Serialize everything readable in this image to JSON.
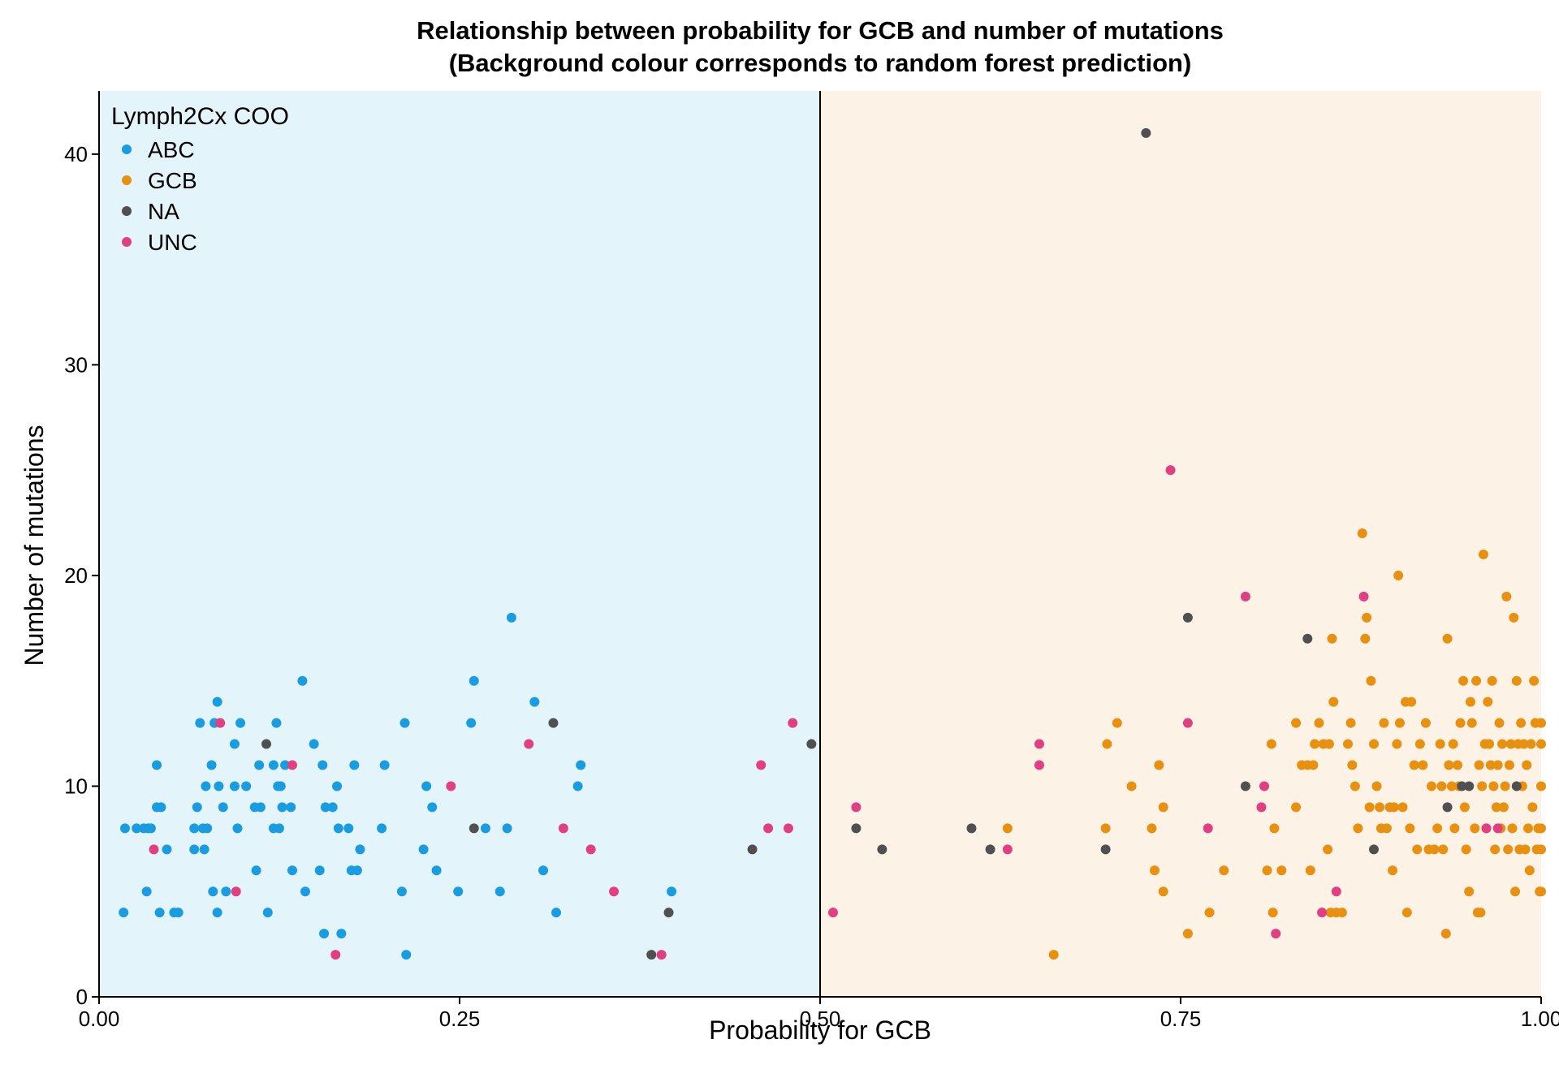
{
  "chart_data": {
    "type": "scatter",
    "title": "Relationship between probability for GCB and number of mutations",
    "subtitle": "(Background colour corresponds to random forest prediction)",
    "xlabel": "Probability for GCB",
    "ylabel": "Number of mutations",
    "xlim": [
      0,
      1
    ],
    "ylim": [
      0,
      43
    ],
    "x_ticks": [
      0,
      0.25,
      0.5,
      0.75,
      1.0
    ],
    "x_tick_labels": [
      "0.00",
      "0.25",
      "0.50",
      "0.75",
      "1.00"
    ],
    "y_ticks": [
      0,
      10,
      20,
      30,
      40
    ],
    "y_tick_labels": [
      "0",
      "10",
      "20",
      "30",
      "40"
    ],
    "grid": false,
    "threshold_x": 0.5,
    "regions": [
      {
        "x_from": 0,
        "x_to": 0.5,
        "color": "#e3f4fb"
      },
      {
        "x_from": 0.5,
        "x_to": 1.0,
        "color": "#fdf2e6"
      }
    ],
    "legend": {
      "title": "Lymph2Cx COO",
      "position": "top-left",
      "entries": [
        "ABC",
        "GCB",
        "NA",
        "UNC"
      ]
    },
    "colors": {
      "ABC": "#1a9de0",
      "GCB": "#e8900f",
      "NA": "#505050",
      "UNC": "#e23f82"
    },
    "series": [
      {
        "name": "ABC",
        "points": [
          [
            0.017,
            4
          ],
          [
            0.018,
            8
          ],
          [
            0.026,
            8
          ],
          [
            0.031,
            8
          ],
          [
            0.033,
            5
          ],
          [
            0.034,
            8
          ],
          [
            0.036,
            8
          ],
          [
            0.04,
            11
          ],
          [
            0.04,
            9
          ],
          [
            0.042,
            4
          ],
          [
            0.043,
            9
          ],
          [
            0.047,
            7
          ],
          [
            0.052,
            4
          ],
          [
            0.055,
            4
          ],
          [
            0.066,
            8
          ],
          [
            0.066,
            7
          ],
          [
            0.068,
            9
          ],
          [
            0.07,
            13
          ],
          [
            0.072,
            8
          ],
          [
            0.073,
            7
          ],
          [
            0.074,
            10
          ],
          [
            0.075,
            8
          ],
          [
            0.078,
            11
          ],
          [
            0.079,
            5
          ],
          [
            0.08,
            13
          ],
          [
            0.082,
            14
          ],
          [
            0.082,
            4
          ],
          [
            0.083,
            10
          ],
          [
            0.086,
            9
          ],
          [
            0.088,
            5
          ],
          [
            0.094,
            12
          ],
          [
            0.094,
            10
          ],
          [
            0.096,
            8
          ],
          [
            0.098,
            13
          ],
          [
            0.102,
            10
          ],
          [
            0.108,
            9
          ],
          [
            0.109,
            6
          ],
          [
            0.111,
            11
          ],
          [
            0.112,
            9
          ],
          [
            0.117,
            4
          ],
          [
            0.121,
            11
          ],
          [
            0.121,
            8
          ],
          [
            0.123,
            13
          ],
          [
            0.124,
            10
          ],
          [
            0.125,
            8
          ],
          [
            0.126,
            10
          ],
          [
            0.127,
            9
          ],
          [
            0.129,
            11
          ],
          [
            0.133,
            9
          ],
          [
            0.134,
            6
          ],
          [
            0.141,
            15
          ],
          [
            0.143,
            5
          ],
          [
            0.149,
            12
          ],
          [
            0.153,
            6
          ],
          [
            0.155,
            11
          ],
          [
            0.156,
            3
          ],
          [
            0.157,
            9
          ],
          [
            0.162,
            9
          ],
          [
            0.165,
            10
          ],
          [
            0.166,
            8
          ],
          [
            0.168,
            3
          ],
          [
            0.173,
            8
          ],
          [
            0.175,
            6
          ],
          [
            0.177,
            11
          ],
          [
            0.179,
            6
          ],
          [
            0.181,
            7
          ],
          [
            0.196,
            8
          ],
          [
            0.198,
            11
          ],
          [
            0.21,
            5
          ],
          [
            0.212,
            13
          ],
          [
            0.213,
            2
          ],
          [
            0.225,
            7
          ],
          [
            0.227,
            10
          ],
          [
            0.231,
            9
          ],
          [
            0.234,
            6
          ],
          [
            0.249,
            5
          ],
          [
            0.258,
            13
          ],
          [
            0.26,
            15
          ],
          [
            0.268,
            8
          ],
          [
            0.278,
            5
          ],
          [
            0.283,
            8
          ],
          [
            0.286,
            18
          ],
          [
            0.302,
            14
          ],
          [
            0.308,
            6
          ],
          [
            0.317,
            4
          ],
          [
            0.332,
            10
          ],
          [
            0.334,
            11
          ],
          [
            0.397,
            5
          ]
        ]
      },
      {
        "name": "GCB",
        "points": [
          [
            0.63,
            8
          ],
          [
            0.662,
            2
          ],
          [
            0.698,
            8
          ],
          [
            0.699,
            12
          ],
          [
            0.706,
            13
          ],
          [
            0.716,
            10
          ],
          [
            0.73,
            8
          ],
          [
            0.732,
            6
          ],
          [
            0.735,
            11
          ],
          [
            0.738,
            9
          ],
          [
            0.738,
            5
          ],
          [
            0.755,
            3
          ],
          [
            0.77,
            4
          ],
          [
            0.78,
            6
          ],
          [
            0.81,
            6
          ],
          [
            0.813,
            12
          ],
          [
            0.814,
            4
          ],
          [
            0.815,
            8
          ],
          [
            0.82,
            6
          ],
          [
            0.83,
            13
          ],
          [
            0.83,
            9
          ],
          [
            0.834,
            11
          ],
          [
            0.838,
            11
          ],
          [
            0.84,
            6
          ],
          [
            0.842,
            11
          ],
          [
            0.843,
            12
          ],
          [
            0.846,
            13
          ],
          [
            0.849,
            12
          ],
          [
            0.852,
            7
          ],
          [
            0.853,
            12
          ],
          [
            0.854,
            4
          ],
          [
            0.855,
            17
          ],
          [
            0.856,
            14
          ],
          [
            0.858,
            4
          ],
          [
            0.862,
            4
          ],
          [
            0.866,
            12
          ],
          [
            0.868,
            13
          ],
          [
            0.869,
            11
          ],
          [
            0.871,
            10
          ],
          [
            0.873,
            8
          ],
          [
            0.876,
            22
          ],
          [
            0.878,
            17
          ],
          [
            0.879,
            18
          ],
          [
            0.881,
            9
          ],
          [
            0.882,
            15
          ],
          [
            0.884,
            12
          ],
          [
            0.886,
            10
          ],
          [
            0.888,
            9
          ],
          [
            0.889,
            8
          ],
          [
            0.891,
            13
          ],
          [
            0.893,
            8
          ],
          [
            0.895,
            9
          ],
          [
            0.897,
            6
          ],
          [
            0.898,
            9
          ],
          [
            0.9,
            12
          ],
          [
            0.901,
            20
          ],
          [
            0.902,
            13
          ],
          [
            0.904,
            9
          ],
          [
            0.906,
            14
          ],
          [
            0.907,
            4
          ],
          [
            0.909,
            8
          ],
          [
            0.91,
            14
          ],
          [
            0.912,
            11
          ],
          [
            0.914,
            7
          ],
          [
            0.916,
            12
          ],
          [
            0.918,
            11
          ],
          [
            0.92,
            13
          ],
          [
            0.922,
            7
          ],
          [
            0.924,
            10
          ],
          [
            0.926,
            7
          ],
          [
            0.928,
            8
          ],
          [
            0.93,
            12
          ],
          [
            0.931,
            10
          ],
          [
            0.932,
            7
          ],
          [
            0.934,
            3
          ],
          [
            0.935,
            17
          ],
          [
            0.936,
            11
          ],
          [
            0.938,
            10
          ],
          [
            0.939,
            12
          ],
          [
            0.94,
            8
          ],
          [
            0.942,
            11
          ],
          [
            0.943,
            10
          ],
          [
            0.944,
            13
          ],
          [
            0.946,
            15
          ],
          [
            0.947,
            9
          ],
          [
            0.948,
            7
          ],
          [
            0.95,
            5
          ],
          [
            0.951,
            14
          ],
          [
            0.952,
            13
          ],
          [
            0.954,
            8
          ],
          [
            0.955,
            15
          ],
          [
            0.956,
            4
          ],
          [
            0.957,
            11
          ],
          [
            0.958,
            4
          ],
          [
            0.959,
            10
          ],
          [
            0.96,
            21
          ],
          [
            0.961,
            12
          ],
          [
            0.962,
            8
          ],
          [
            0.963,
            14
          ],
          [
            0.964,
            12
          ],
          [
            0.965,
            11
          ],
          [
            0.966,
            15
          ],
          [
            0.967,
            10
          ],
          [
            0.968,
            7
          ],
          [
            0.969,
            9
          ],
          [
            0.97,
            11
          ],
          [
            0.971,
            13
          ],
          [
            0.972,
            8
          ],
          [
            0.973,
            12
          ],
          [
            0.974,
            9
          ],
          [
            0.975,
            10
          ],
          [
            0.976,
            19
          ],
          [
            0.977,
            7
          ],
          [
            0.978,
            11
          ],
          [
            0.979,
            12
          ],
          [
            0.98,
            8
          ],
          [
            0.981,
            18
          ],
          [
            0.982,
            5
          ],
          [
            0.983,
            15
          ],
          [
            0.984,
            12
          ],
          [
            0.985,
            7
          ],
          [
            0.986,
            13
          ],
          [
            0.987,
            10
          ],
          [
            0.988,
            12
          ],
          [
            0.989,
            7
          ],
          [
            0.99,
            11
          ],
          [
            0.991,
            8
          ],
          [
            0.992,
            6
          ],
          [
            0.993,
            12
          ],
          [
            0.994,
            9
          ],
          [
            0.995,
            15
          ],
          [
            0.996,
            13
          ],
          [
            0.997,
            7
          ],
          [
            0.998,
            8
          ],
          [
            0.999,
            5
          ],
          [
            1.0,
            12
          ],
          [
            1.0,
            8
          ],
          [
            1.0,
            13
          ],
          [
            1.0,
            7
          ],
          [
            1.0,
            10
          ],
          [
            1.0,
            5
          ]
        ]
      },
      {
        "name": "NA",
        "points": [
          [
            0.116,
            12
          ],
          [
            0.26,
            8
          ],
          [
            0.315,
            13
          ],
          [
            0.383,
            2
          ],
          [
            0.395,
            4
          ],
          [
            0.453,
            7
          ],
          [
            0.494,
            12
          ],
          [
            0.525,
            8
          ],
          [
            0.543,
            7
          ],
          [
            0.605,
            8
          ],
          [
            0.618,
            7
          ],
          [
            0.698,
            7
          ],
          [
            0.726,
            41
          ],
          [
            0.755,
            18
          ],
          [
            0.795,
            10
          ],
          [
            0.838,
            17
          ],
          [
            0.884,
            7
          ],
          [
            0.935,
            9
          ],
          [
            0.945,
            10
          ],
          [
            0.95,
            10
          ],
          [
            0.983,
            10
          ]
        ]
      },
      {
        "name": "UNC",
        "points": [
          [
            0.038,
            7
          ],
          [
            0.084,
            13
          ],
          [
            0.095,
            5
          ],
          [
            0.134,
            11
          ],
          [
            0.164,
            2
          ],
          [
            0.244,
            10
          ],
          [
            0.298,
            12
          ],
          [
            0.322,
            8
          ],
          [
            0.341,
            7
          ],
          [
            0.357,
            5
          ],
          [
            0.39,
            2
          ],
          [
            0.459,
            11
          ],
          [
            0.464,
            8
          ],
          [
            0.478,
            8
          ],
          [
            0.481,
            13
          ],
          [
            0.509,
            4
          ],
          [
            0.525,
            9
          ],
          [
            0.63,
            7
          ],
          [
            0.652,
            12
          ],
          [
            0.652,
            11
          ],
          [
            0.743,
            25
          ],
          [
            0.755,
            13
          ],
          [
            0.769,
            8
          ],
          [
            0.795,
            19
          ],
          [
            0.806,
            9
          ],
          [
            0.808,
            10
          ],
          [
            0.816,
            3
          ],
          [
            0.848,
            4
          ],
          [
            0.858,
            5
          ],
          [
            0.877,
            19
          ],
          [
            0.962,
            8
          ],
          [
            0.97,
            8
          ]
        ]
      }
    ]
  }
}
